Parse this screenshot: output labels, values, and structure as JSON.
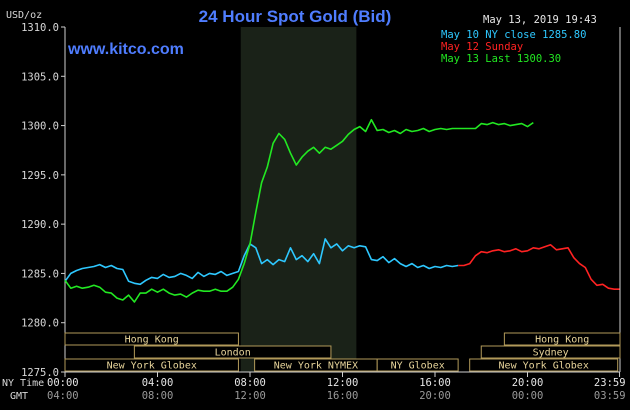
{
  "header": {
    "title": "24 Hour Spot Gold (Bid)",
    "units": "USD/oz",
    "website": "www.kitco.com",
    "timestamp": "May 13, 2019 19:43"
  },
  "legend": [
    {
      "label": "May 10 NY close 1285.80",
      "color": "#2ec8ff"
    },
    {
      "label": "May 12 Sunday",
      "color": "#ff2222"
    },
    {
      "label": "May 13 Last 1300.30",
      "color": "#22e822"
    }
  ],
  "sessions": {
    "row1": [
      {
        "label": "Hong Kong",
        "start": 0,
        "end": 7.5
      },
      {
        "label": "Hong Kong",
        "start": 19.0,
        "end": 24.0
      }
    ],
    "row2": [
      {
        "label": "London",
        "start": 3.0,
        "end": 11.5
      },
      {
        "label": "Sydney",
        "start": 18.0,
        "end": 24.0
      }
    ],
    "row3": [
      {
        "label": "New York Globex",
        "start": 0,
        "end": 7.5
      },
      {
        "label": "New York NYMEX",
        "start": 8.2,
        "end": 13.5
      },
      {
        "label": "NY Globex",
        "start": 13.5,
        "end": 17.0
      },
      {
        "label": "New York Globex",
        "start": 17.5,
        "end": 23.9
      }
    ]
  },
  "time_axis": {
    "row1_prefix": "NY Time",
    "row2_prefix": "GMT",
    "ny_labels": [
      "00:00",
      "04:00",
      "08:00",
      "12:00",
      "16:00",
      "20:00",
      "23:59"
    ],
    "gmt_labels": [
      "04:00",
      "08:00",
      "12:00",
      "16:00",
      "20:00",
      "00:00",
      "03:59"
    ]
  },
  "chart_data": {
    "type": "line",
    "title": "24 Hour Spot Gold (Bid)",
    "ylabel": "USD/oz",
    "xlabel": "",
    "xlim": [
      0,
      24
    ],
    "ylim": [
      1275,
      1310
    ],
    "y_ticks": [
      "1310.0",
      "1305.0",
      "1300.0",
      "1295.0",
      "1290.0",
      "1285.0",
      "1280.0",
      "1275.0"
    ],
    "y_tick_values": [
      1310,
      1305,
      1300,
      1295,
      1290,
      1285,
      1280,
      1275
    ],
    "x_ticks": [
      0,
      4,
      8,
      12,
      16,
      20,
      23.98
    ],
    "highlight_x": [
      7.6,
      12.6
    ],
    "grid": false,
    "series": [
      {
        "name": "May 10 NY close 1285.80",
        "color": "#2ec8ff",
        "x": [
          0,
          0.25,
          0.5,
          0.75,
          1.0,
          1.25,
          1.5,
          1.75,
          2.0,
          2.25,
          2.5,
          2.75,
          3.0,
          3.25,
          3.5,
          3.75,
          4.0,
          4.25,
          4.5,
          4.75,
          5.0,
          5.25,
          5.5,
          5.75,
          6.0,
          6.25,
          6.5,
          6.75,
          7.0,
          7.25,
          7.5,
          7.75,
          8.0,
          8.25,
          8.5,
          8.75,
          9.0,
          9.25,
          9.5,
          9.75,
          10.0,
          10.25,
          10.5,
          10.75,
          11.0,
          11.25,
          11.5,
          11.75,
          12.0,
          12.25,
          12.5,
          12.75,
          13.0,
          13.25,
          13.5,
          13.75,
          14.0,
          14.25,
          14.5,
          14.75,
          15.0,
          15.25,
          15.5,
          15.75,
          16.0,
          16.25,
          16.5,
          16.75,
          17.0
        ],
        "values": [
          1284.2,
          1285.0,
          1285.3,
          1285.5,
          1285.6,
          1285.7,
          1285.9,
          1285.6,
          1285.8,
          1285.5,
          1285.4,
          1284.2,
          1284.0,
          1283.9,
          1284.3,
          1284.6,
          1284.5,
          1284.9,
          1284.6,
          1284.7,
          1285.0,
          1284.8,
          1284.5,
          1285.1,
          1284.7,
          1285.0,
          1284.9,
          1285.2,
          1284.8,
          1285.0,
          1285.2,
          1286.8,
          1288.0,
          1287.6,
          1286.0,
          1286.4,
          1285.9,
          1286.4,
          1286.2,
          1287.6,
          1286.4,
          1286.8,
          1286.2,
          1287.0,
          1286.0,
          1288.5,
          1287.6,
          1288.0,
          1287.3,
          1287.8,
          1287.6,
          1287.8,
          1287.7,
          1286.4,
          1286.3,
          1286.7,
          1286.1,
          1286.5,
          1286.0,
          1285.7,
          1286.0,
          1285.6,
          1285.8,
          1285.5,
          1285.7,
          1285.6,
          1285.8,
          1285.7,
          1285.8
        ]
      },
      {
        "name": "May 12 Sunday",
        "color": "#ff2222",
        "x": [
          17.0,
          17.25,
          17.5,
          17.75,
          18.0,
          18.25,
          18.5,
          18.75,
          19.0,
          19.25,
          19.5,
          19.75,
          20.0,
          20.25,
          20.5,
          20.75,
          21.0,
          21.25,
          21.5,
          21.75,
          22.0,
          22.25,
          22.5,
          22.75,
          23.0,
          23.25,
          23.5,
          23.75,
          23.98
        ],
        "values": [
          1285.8,
          1285.8,
          1286.0,
          1286.8,
          1287.2,
          1287.1,
          1287.3,
          1287.4,
          1287.2,
          1287.3,
          1287.5,
          1287.2,
          1287.3,
          1287.6,
          1287.5,
          1287.7,
          1287.9,
          1287.4,
          1287.5,
          1287.6,
          1286.6,
          1286.0,
          1285.6,
          1284.4,
          1283.8,
          1283.9,
          1283.5,
          1283.4,
          1283.4
        ]
      },
      {
        "name": "May 13 Last 1300.30",
        "color": "#22e822",
        "x": [
          0,
          0.25,
          0.5,
          0.75,
          1.0,
          1.25,
          1.5,
          1.75,
          2.0,
          2.25,
          2.5,
          2.75,
          3.0,
          3.25,
          3.5,
          3.75,
          4.0,
          4.25,
          4.5,
          4.75,
          5.0,
          5.25,
          5.5,
          5.75,
          6.0,
          6.25,
          6.5,
          6.75,
          7.0,
          7.25,
          7.5,
          7.75,
          8.0,
          8.25,
          8.5,
          8.75,
          9.0,
          9.25,
          9.5,
          9.75,
          10.0,
          10.25,
          10.5,
          10.75,
          11.0,
          11.25,
          11.5,
          11.75,
          12.0,
          12.25,
          12.5,
          12.75,
          13.0,
          13.25,
          13.5,
          13.75,
          14.0,
          14.25,
          14.5,
          14.75,
          15.0,
          15.25,
          15.5,
          15.75,
          16.0,
          16.25,
          16.5,
          16.75,
          17.0,
          17.5,
          17.75,
          18.0,
          18.25,
          18.5,
          18.75,
          19.0,
          19.25,
          19.5,
          19.75,
          20.0,
          20.25
        ],
        "values": [
          1284.3,
          1283.5,
          1283.7,
          1283.5,
          1283.6,
          1283.8,
          1283.6,
          1283.1,
          1283.0,
          1282.5,
          1282.3,
          1282.8,
          1282.1,
          1283.0,
          1283.0,
          1283.4,
          1283.1,
          1283.4,
          1283.0,
          1282.8,
          1282.9,
          1282.6,
          1283.0,
          1283.3,
          1283.2,
          1283.2,
          1283.4,
          1283.2,
          1283.2,
          1283.6,
          1284.4,
          1286.0,
          1288.0,
          1291.2,
          1294.2,
          1295.8,
          1298.2,
          1299.2,
          1298.6,
          1297.2,
          1296.0,
          1296.8,
          1297.4,
          1297.8,
          1297.2,
          1297.8,
          1297.6,
          1298.0,
          1298.4,
          1299.1,
          1299.6,
          1299.9,
          1299.4,
          1300.6,
          1299.5,
          1299.6,
          1299.3,
          1299.5,
          1299.2,
          1299.6,
          1299.4,
          1299.5,
          1299.7,
          1299.4,
          1299.6,
          1299.7,
          1299.6,
          1299.7,
          1299.7,
          1299.7,
          1299.7,
          1300.2,
          1300.1,
          1300.3,
          1300.1,
          1300.2,
          1300.0,
          1300.1,
          1300.2,
          1299.9,
          1300.3
        ]
      }
    ]
  }
}
